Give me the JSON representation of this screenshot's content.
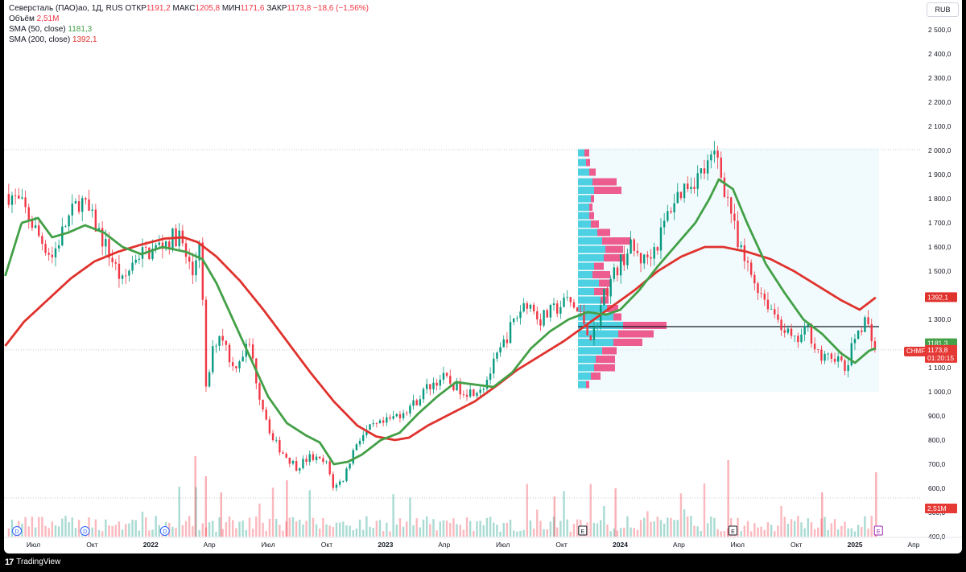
{
  "legend": {
    "symbol": "Северсталь (ПАО)ао, 1Д, RUS",
    "open_label": "ОТКР",
    "open": "1191,2",
    "high_label": "МАКС",
    "high": "1205,8",
    "low_label": "МИН",
    "low": "1171,6",
    "close_label": "ЗАКР",
    "close": "1173,8",
    "change": "−18,6 (−1,56%)",
    "volume_label": "Объём",
    "volume": "2,51M",
    "sma50_label": "SMA (50, close)",
    "sma50": "1181,3",
    "sma200_label": "SMA (200, close)",
    "sma200": "1392,1"
  },
  "currency": "RUB",
  "ticker": "CHMF",
  "countdown": "01:20:15",
  "brand": "TradingView",
  "colors": {
    "sma50": "#43a047",
    "sma200": "#e0322d",
    "up": "#089981",
    "down": "#f23645",
    "vp_up": "#4dd0e1",
    "vp_down": "#ec407a"
  },
  "chart_data": {
    "type": "candlestick",
    "y_axis": {
      "ticks": [
        "2 500,0",
        "2 400,0",
        "2 300,0",
        "2 200,0",
        "2 100,0",
        "2 000,0",
        "1 900,0",
        "1 800,0",
        "1 700,0",
        "1 600,0",
        "1 500,0",
        "1 400,0",
        "1 300,0",
        "1 200,0",
        "1 100,0",
        "1 000,0",
        "900,0",
        "800,0",
        "700,0",
        "600,0",
        "500,0",
        "400,0"
      ],
      "range": [
        400,
        2550
      ]
    },
    "x_axis": {
      "ticks": [
        "Июл",
        "Окт",
        "2022",
        "Апр",
        "Июл",
        "Окт",
        "2023",
        "Апр",
        "Июл",
        "Окт",
        "2024",
        "Апр",
        "Июл",
        "Окт",
        "2025",
        "Апр"
      ]
    },
    "price_path": [
      [
        2021.4,
        1820
      ],
      [
        2021.46,
        1760
      ],
      [
        2021.52,
        1650
      ],
      [
        2021.58,
        1560
      ],
      [
        2021.64,
        1700
      ],
      [
        2021.7,
        1800
      ],
      [
        2021.76,
        1700
      ],
      [
        2021.82,
        1580
      ],
      [
        2021.88,
        1450
      ],
      [
        2021.94,
        1570
      ],
      [
        2022.0,
        1580
      ],
      [
        2022.06,
        1620
      ],
      [
        2022.12,
        1650
      ],
      [
        2022.15,
        1560
      ],
      [
        2022.18,
        1480
      ],
      [
        2022.21,
        1660
      ],
      [
        2022.235,
        1000
      ],
      [
        2022.27,
        1200
      ],
      [
        2022.3,
        1250
      ],
      [
        2022.35,
        1100
      ],
      [
        2022.42,
        1200
      ],
      [
        2022.46,
        1000
      ],
      [
        2022.52,
        800
      ],
      [
        2022.57,
        740
      ],
      [
        2022.62,
        690
      ],
      [
        2022.68,
        730
      ],
      [
        2022.75,
        700
      ],
      [
        2022.78,
        600
      ],
      [
        2022.82,
        640
      ],
      [
        2022.88,
        800
      ],
      [
        2022.94,
        850
      ],
      [
        2023.0,
        870
      ],
      [
        2023.06,
        910
      ],
      [
        2023.12,
        950
      ],
      [
        2023.18,
        1020
      ],
      [
        2023.24,
        1060
      ],
      [
        2023.3,
        1020
      ],
      [
        2023.36,
        1000
      ],
      [
        2023.42,
        1030
      ],
      [
        2023.48,
        1150
      ],
      [
        2023.54,
        1280
      ],
      [
        2023.6,
        1380
      ],
      [
        2023.66,
        1300
      ],
      [
        2023.72,
        1340
      ],
      [
        2023.78,
        1380
      ],
      [
        2023.84,
        1300
      ],
      [
        2023.88,
        1220
      ],
      [
        2023.93,
        1400
      ],
      [
        2023.98,
        1500
      ],
      [
        2024.04,
        1600
      ],
      [
        2024.1,
        1540
      ],
      [
        2024.16,
        1620
      ],
      [
        2024.22,
        1780
      ],
      [
        2024.28,
        1860
      ],
      [
        2024.34,
        1900
      ],
      [
        2024.38,
        1940
      ],
      [
        2024.41,
        1990
      ],
      [
        2024.44,
        1860
      ],
      [
        2024.47,
        1760
      ],
      [
        2024.5,
        1600
      ],
      [
        2024.56,
        1480
      ],
      [
        2024.62,
        1380
      ],
      [
        2024.68,
        1290
      ],
      [
        2024.74,
        1200
      ],
      [
        2024.8,
        1260
      ],
      [
        2024.86,
        1130
      ],
      [
        2024.92,
        1150
      ],
      [
        2024.96,
        1080
      ],
      [
        2025.0,
        1230
      ],
      [
        2025.04,
        1300
      ],
      [
        2025.07,
        1240
      ],
      [
        2025.09,
        1174
      ]
    ],
    "sma50_path": [
      [
        2021.38,
        1480
      ],
      [
        2021.45,
        1700
      ],
      [
        2021.52,
        1720
      ],
      [
        2021.58,
        1640
      ],
      [
        2021.65,
        1660
      ],
      [
        2021.72,
        1690
      ],
      [
        2021.8,
        1660
      ],
      [
        2021.88,
        1600
      ],
      [
        2021.96,
        1570
      ],
      [
        2022.05,
        1600
      ],
      [
        2022.15,
        1580
      ],
      [
        2022.22,
        1550
      ],
      [
        2022.28,
        1450
      ],
      [
        2022.35,
        1300
      ],
      [
        2022.42,
        1150
      ],
      [
        2022.5,
        980
      ],
      [
        2022.58,
        870
      ],
      [
        2022.66,
        820
      ],
      [
        2022.72,
        790
      ],
      [
        2022.78,
        700
      ],
      [
        2022.84,
        710
      ],
      [
        2022.9,
        740
      ],
      [
        2022.98,
        800
      ],
      [
        2023.06,
        830
      ],
      [
        2023.14,
        910
      ],
      [
        2023.22,
        980
      ],
      [
        2023.3,
        1040
      ],
      [
        2023.38,
        1030
      ],
      [
        2023.46,
        1020
      ],
      [
        2023.54,
        1080
      ],
      [
        2023.62,
        1180
      ],
      [
        2023.7,
        1250
      ],
      [
        2023.78,
        1300
      ],
      [
        2023.86,
        1330
      ],
      [
        2023.94,
        1320
      ],
      [
        2024.0,
        1340
      ],
      [
        2024.08,
        1420
      ],
      [
        2024.16,
        1520
      ],
      [
        2024.24,
        1610
      ],
      [
        2024.32,
        1700
      ],
      [
        2024.38,
        1800
      ],
      [
        2024.42,
        1880
      ],
      [
        2024.48,
        1840
      ],
      [
        2024.54,
        1700
      ],
      [
        2024.62,
        1530
      ],
      [
        2024.7,
        1410
      ],
      [
        2024.78,
        1300
      ],
      [
        2024.86,
        1240
      ],
      [
        2024.94,
        1160
      ],
      [
        2025.0,
        1120
      ],
      [
        2025.06,
        1170
      ],
      [
        2025.09,
        1181
      ]
    ],
    "sma200_path": [
      [
        2021.38,
        1190
      ],
      [
        2021.46,
        1290
      ],
      [
        2021.56,
        1380
      ],
      [
        2021.66,
        1470
      ],
      [
        2021.76,
        1540
      ],
      [
        2021.86,
        1580
      ],
      [
        2021.96,
        1610
      ],
      [
        2022.06,
        1635
      ],
      [
        2022.14,
        1640
      ],
      [
        2022.2,
        1620
      ],
      [
        2022.28,
        1560
      ],
      [
        2022.38,
        1460
      ],
      [
        2022.48,
        1340
      ],
      [
        2022.58,
        1210
      ],
      [
        2022.68,
        1080
      ],
      [
        2022.78,
        960
      ],
      [
        2022.88,
        860
      ],
      [
        2022.96,
        815
      ],
      [
        2023.04,
        800
      ],
      [
        2023.1,
        810
      ],
      [
        2023.18,
        860
      ],
      [
        2023.28,
        910
      ],
      [
        2023.38,
        960
      ],
      [
        2023.48,
        1030
      ],
      [
        2023.56,
        1090
      ],
      [
        2023.66,
        1150
      ],
      [
        2023.76,
        1210
      ],
      [
        2023.86,
        1280
      ],
      [
        2023.96,
        1350
      ],
      [
        2024.06,
        1420
      ],
      [
        2024.16,
        1500
      ],
      [
        2024.26,
        1560
      ],
      [
        2024.36,
        1600
      ],
      [
        2024.44,
        1600
      ],
      [
        2024.54,
        1580
      ],
      [
        2024.64,
        1550
      ],
      [
        2024.74,
        1500
      ],
      [
        2024.84,
        1440
      ],
      [
        2024.94,
        1380
      ],
      [
        2025.02,
        1340
      ],
      [
        2025.09,
        1392
      ]
    ],
    "volume_profile": {
      "range": [
        1000,
        2010
      ],
      "poc": 1270,
      "rows": [
        {
          "price": 1990,
          "up": 8,
          "down": 6
        },
        {
          "price": 1950,
          "up": 10,
          "down": 5
        },
        {
          "price": 1910,
          "up": 14,
          "down": 8
        },
        {
          "price": 1870,
          "up": 18,
          "down": 30
        },
        {
          "price": 1835,
          "up": 20,
          "down": 34
        },
        {
          "price": 1800,
          "up": 16,
          "down": 4
        },
        {
          "price": 1765,
          "up": 14,
          "down": 4
        },
        {
          "price": 1730,
          "up": 14,
          "down": 6
        },
        {
          "price": 1695,
          "up": 16,
          "down": 10
        },
        {
          "price": 1660,
          "up": 24,
          "down": 16
        },
        {
          "price": 1625,
          "up": 30,
          "down": 36
        },
        {
          "price": 1590,
          "up": 34,
          "down": 22
        },
        {
          "price": 1555,
          "up": 32,
          "down": 24
        },
        {
          "price": 1520,
          "up": 20,
          "down": 12
        },
        {
          "price": 1485,
          "up": 18,
          "down": 22
        },
        {
          "price": 1450,
          "up": 26,
          "down": 14
        },
        {
          "price": 1415,
          "up": 20,
          "down": 18
        },
        {
          "price": 1380,
          "up": 28,
          "down": 10
        },
        {
          "price": 1345,
          "up": 36,
          "down": 14
        },
        {
          "price": 1310,
          "up": 44,
          "down": 10
        },
        {
          "price": 1275,
          "up": 56,
          "down": 54
        },
        {
          "price": 1240,
          "up": 50,
          "down": 44
        },
        {
          "price": 1205,
          "up": 44,
          "down": 36
        },
        {
          "price": 1170,
          "up": 30,
          "down": 18
        },
        {
          "price": 1135,
          "up": 22,
          "down": 24
        },
        {
          "price": 1100,
          "up": 20,
          "down": 26
        },
        {
          "price": 1065,
          "up": 16,
          "down": 12
        },
        {
          "price": 1030,
          "up": 10,
          "down": 4
        }
      ]
    },
    "last_price": 1173.8,
    "last_volume": "2,51M"
  }
}
